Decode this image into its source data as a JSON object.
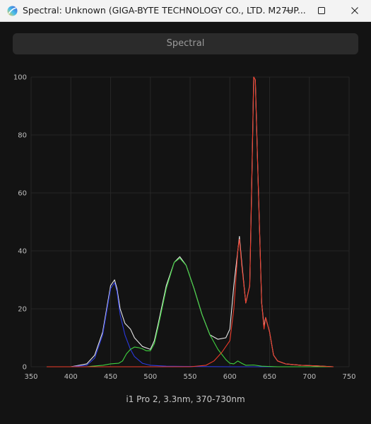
{
  "window": {
    "title": "Spectral: Unknown (GIGA-BYTE TECHNOLOGY CO., LTD. M27UP...",
    "icon": "rainbow-disc-icon",
    "controls": {
      "minimize": "minimize-icon",
      "maximize": "maximize-icon",
      "close": "close-icon"
    }
  },
  "tab": {
    "label": "Spectral"
  },
  "caption": "i1 Pro 2, 3.3nm, 370-730nm",
  "chart_data": {
    "type": "line",
    "xlim": [
      350,
      750
    ],
    "ylim": [
      0,
      100
    ],
    "xticks": [
      350,
      400,
      450,
      500,
      550,
      600,
      650,
      700,
      750
    ],
    "yticks": [
      0,
      20,
      40,
      60,
      80,
      100
    ],
    "grid": true,
    "series": [
      {
        "color": "#e8e8e8",
        "x": [
          370,
          400,
          420,
          430,
          440,
          445,
          450,
          455,
          458,
          462,
          468,
          475,
          480,
          490,
          500,
          505,
          510,
          520,
          530,
          537,
          545,
          555,
          565,
          575,
          585,
          595,
          600,
          605,
          610,
          612,
          615,
          620,
          625,
          628,
          630,
          632,
          635,
          640,
          643,
          645,
          650,
          655,
          660,
          670,
          690,
          710,
          730
        ],
        "y": [
          0,
          0,
          1,
          4,
          12,
          20,
          28,
          30,
          27,
          20,
          15,
          13,
          10,
          7,
          6,
          9,
          15,
          28,
          36,
          38,
          35,
          27,
          18,
          11,
          9.5,
          10,
          13,
          28,
          40,
          45,
          36,
          22,
          28,
          70,
          100,
          99,
          70,
          22,
          14,
          17,
          12,
          4,
          2,
          1,
          0.5,
          0.3,
          0
        ]
      },
      {
        "color": "#2b3ae0",
        "x": [
          370,
          400,
          420,
          430,
          440,
          445,
          450,
          455,
          458,
          462,
          468,
          475,
          480,
          490,
          500,
          520,
          550,
          600,
          650,
          700,
          730
        ],
        "y": [
          0,
          0,
          0.5,
          3,
          11,
          19,
          27,
          29,
          26,
          18,
          11,
          6,
          3.5,
          1.2,
          0.5,
          0.2,
          0.1,
          0,
          0,
          0,
          0
        ]
      },
      {
        "color": "#3fd23f",
        "x": [
          370,
          420,
          440,
          450,
          460,
          465,
          470,
          475,
          480,
          485,
          490,
          495,
          500,
          505,
          510,
          520,
          530,
          537,
          545,
          555,
          565,
          575,
          585,
          595,
          600,
          605,
          610,
          615,
          620,
          630,
          640,
          660,
          700,
          730
        ],
        "y": [
          0,
          0,
          0.5,
          1,
          1.2,
          2,
          4.5,
          6,
          6.8,
          6.6,
          6.2,
          5.5,
          5.5,
          8,
          14,
          27,
          36,
          37.5,
          35,
          27,
          18,
          11,
          6,
          2.5,
          1.2,
          1,
          2,
          1.2,
          0.5,
          0.6,
          0.2,
          0,
          0,
          0
        ]
      },
      {
        "color": "#ee3b2a",
        "x": [
          370,
          450,
          500,
          550,
          570,
          580,
          590,
          600,
          605,
          610,
          612,
          615,
          620,
          625,
          628,
          630,
          632,
          635,
          640,
          643,
          645,
          650,
          655,
          660,
          670,
          690,
          710,
          730
        ],
        "y": [
          0,
          0,
          0,
          0,
          0.5,
          2,
          5,
          9,
          20,
          40,
          44,
          35,
          22,
          28,
          70,
          100,
          99,
          70,
          22,
          13,
          17,
          12,
          4,
          2,
          1,
          0.5,
          0.3,
          0
        ]
      }
    ]
  }
}
